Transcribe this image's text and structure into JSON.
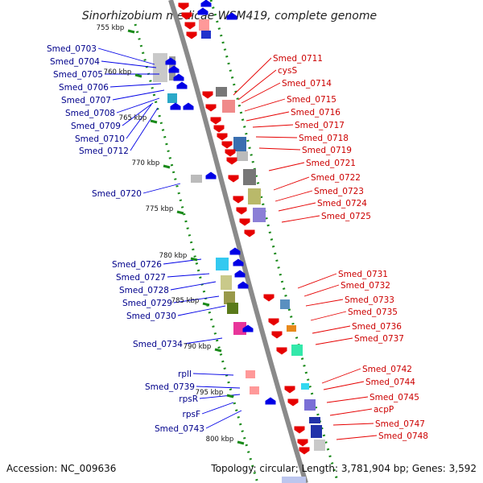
{
  "title": "Sinorhizobium medicae WSM419, complete genome",
  "footer": {
    "accession": "Accession: NC_009636",
    "summary": "Topology: circular; Length: 3,781,904 bp; Genes: 3,592"
  },
  "colors": {
    "forward": "#0000e6",
    "reverse": "#e60000",
    "left_label": "#00008b",
    "right_label": "#cc0000",
    "backbone": "#8a8a8a",
    "tick": "#1a8a1a"
  },
  "scale_labels": [
    "755 kbp",
    "760 kbp",
    "765 kbp",
    "770 kbp",
    "775 kbp",
    "780 kbp",
    "785 kbp",
    "790 kbp",
    "795 kbp",
    "800 kbp"
  ],
  "left_labels": [
    "Smed_0703",
    "Smed_0704",
    "Smed_0705",
    "Smed_0706",
    "Smed_0707",
    "Smed_0708",
    "Smed_0709",
    "Smed_0710",
    "Smed_0712",
    "Smed_0720",
    "Smed_0726",
    "Smed_0727",
    "Smed_0728",
    "Smed_0729",
    "Smed_0730",
    "Smed_0734",
    "rplI",
    "Smed_0739",
    "rpsR",
    "rpsF",
    "Smed_0743"
  ],
  "right_labels": [
    "Smed_0711",
    "cysS",
    "Smed_0714",
    "Smed_0715",
    "Smed_0716",
    "Smed_0717",
    "Smed_0718",
    "Smed_0719",
    "Smed_0721",
    "Smed_0722",
    "Smed_0723",
    "Smed_0724",
    "Smed_0725",
    "Smed_0731",
    "Smed_0732",
    "Smed_0733",
    "Smed_0735",
    "Smed_0736",
    "Smed_0737",
    "Smed_0742",
    "Smed_0744",
    "Smed_0745",
    "acpP",
    "Smed_0747",
    "Smed_0748"
  ]
}
